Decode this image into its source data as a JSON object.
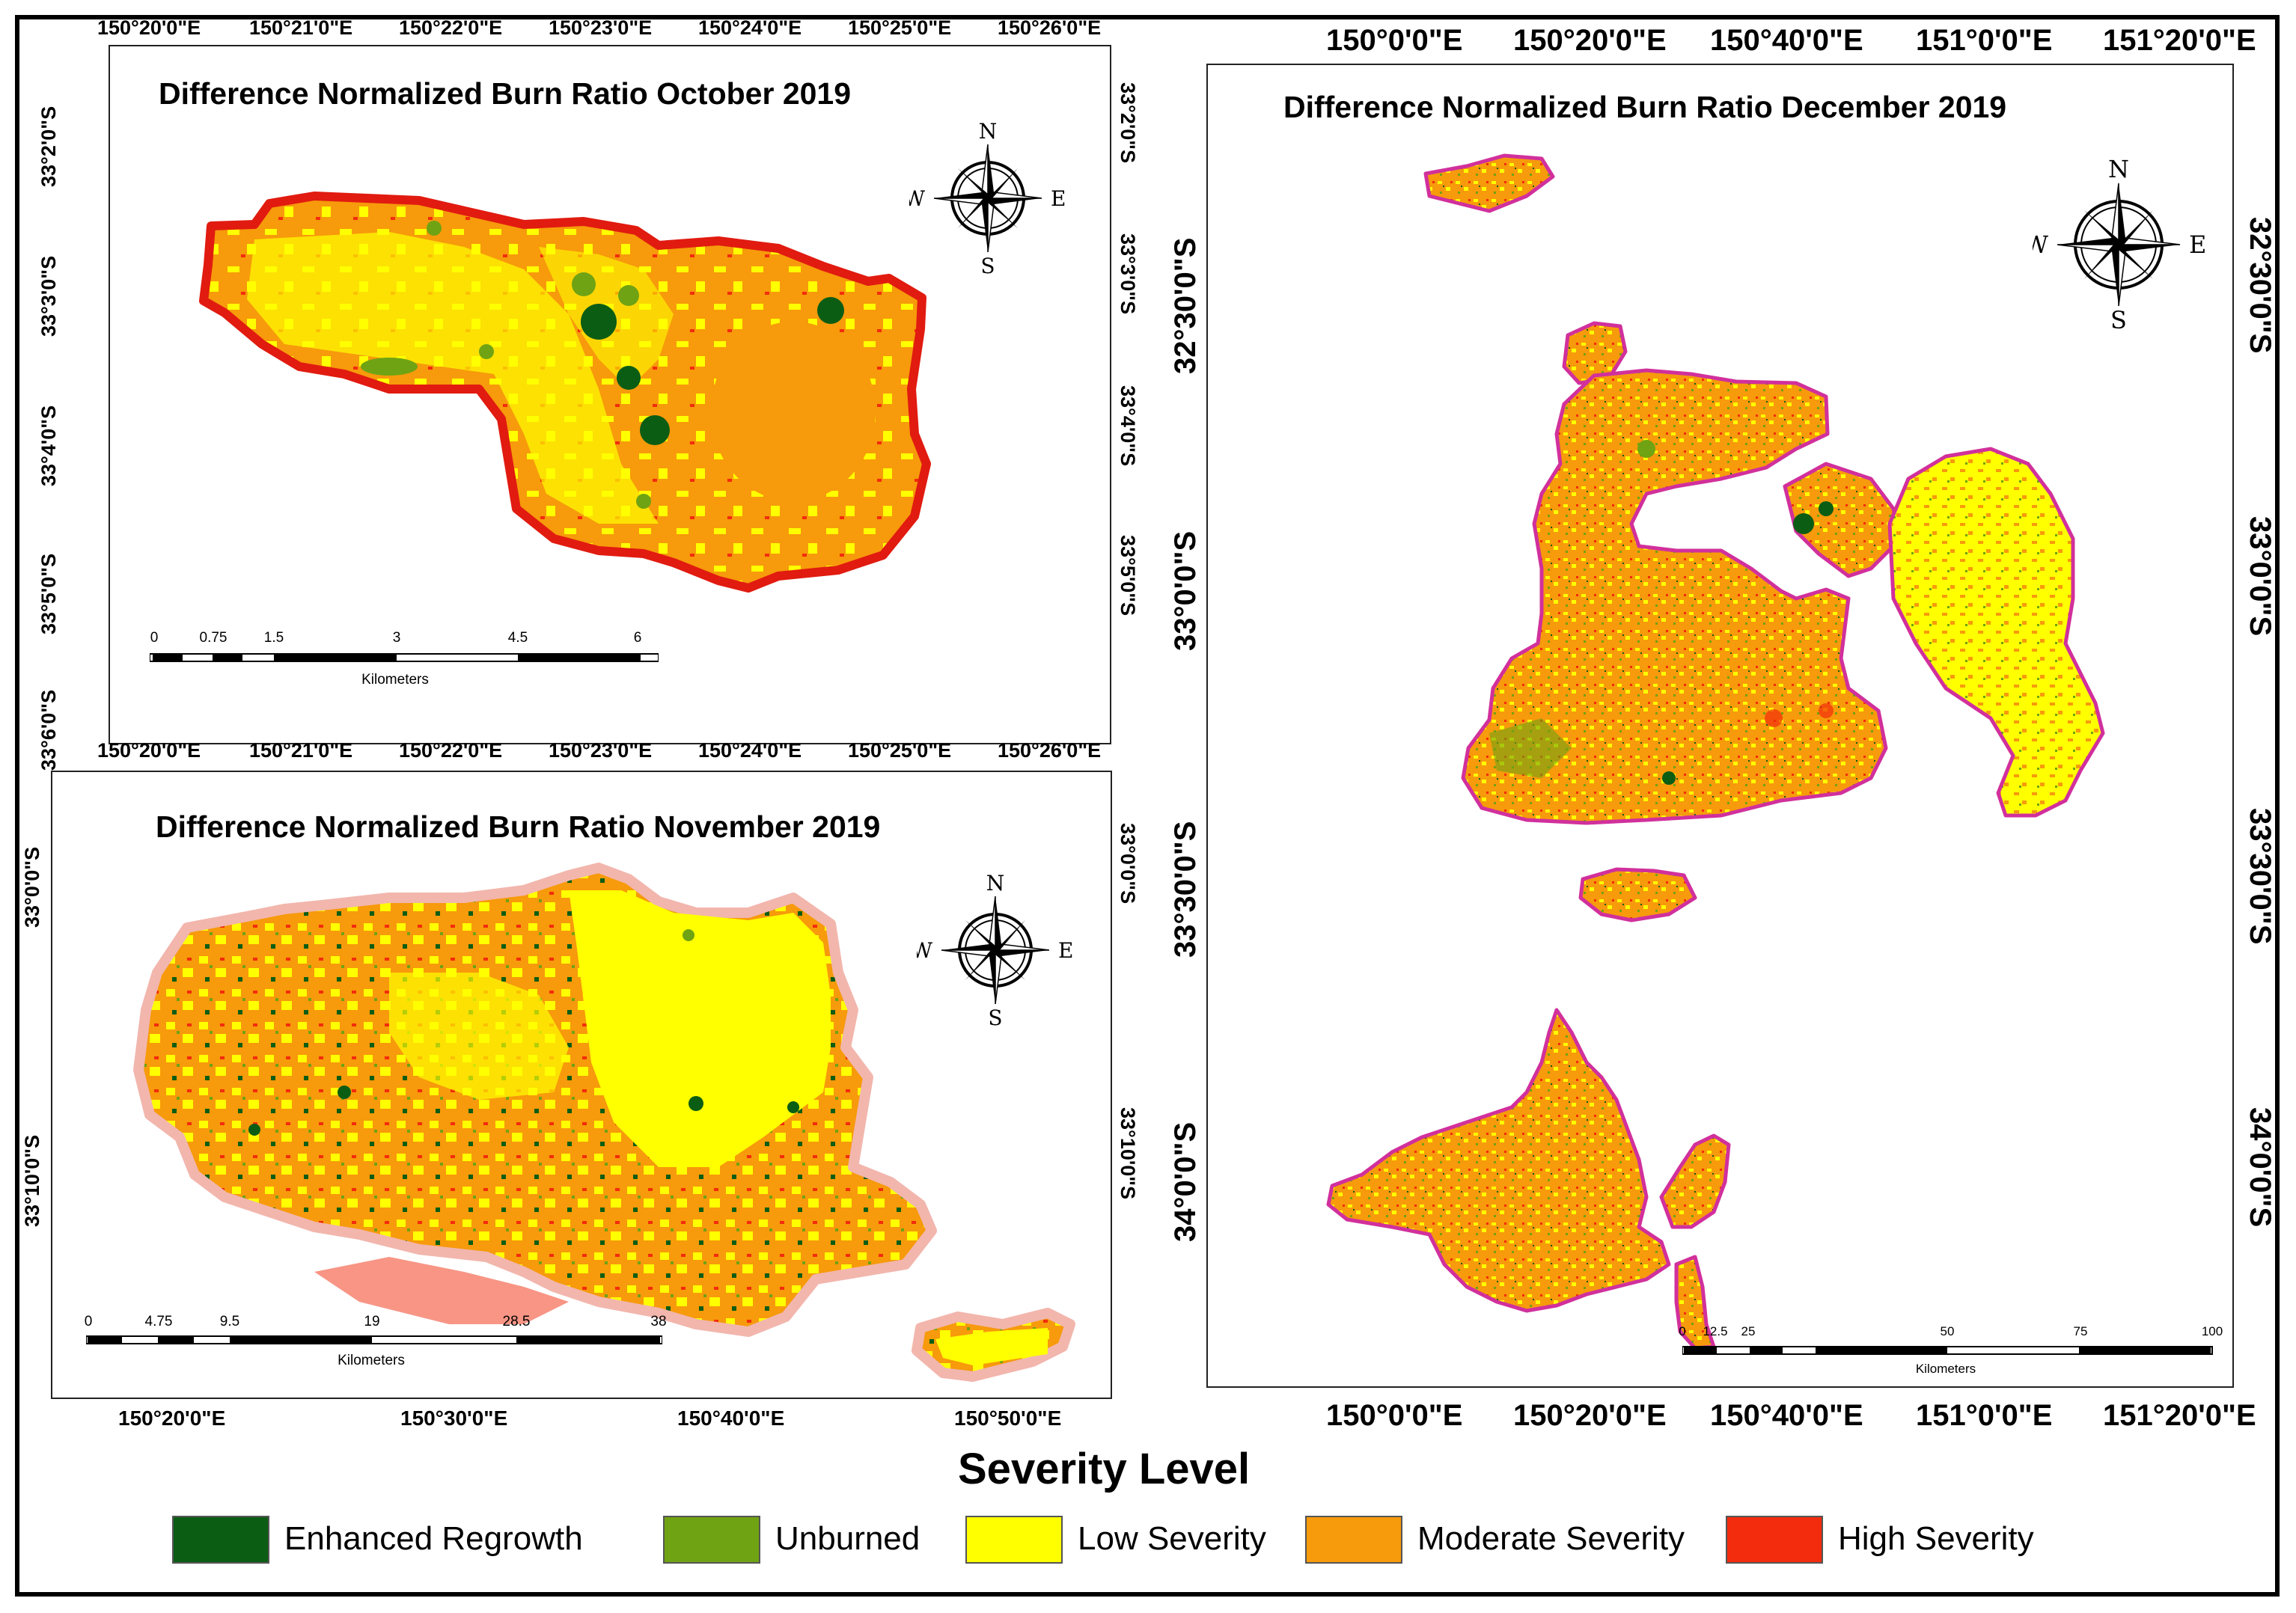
{
  "panels": {
    "october": {
      "title": "Difference Normalized Burn Ratio October 2019",
      "lon_ticks": [
        "150°20'0\"E",
        "150°21'0\"E",
        "150°22'0\"E",
        "150°23'0\"E",
        "150°24'0\"E",
        "150°25'0\"E",
        "150°26'0\"E"
      ],
      "lat_ticks": [
        "33°2'0\"S",
        "33°3'0\"S",
        "33°4'0\"S",
        "33°5'0\"S",
        "33°6'0\"S"
      ],
      "lat_ticks_right": [
        "33°2'0\"S",
        "33°3'0\"S",
        "33°4'0\"S",
        "33°5'0\"S"
      ],
      "scale_labels": [
        "0",
        "0.75",
        "1.5",
        "3",
        "4.5",
        "6"
      ],
      "scale_unit": "Kilometers"
    },
    "november": {
      "title": "Difference Normalized Burn Ratio November 2019",
      "lon_ticks": [
        "150°20'0\"E",
        "150°30'0\"E",
        "150°40'0\"E",
        "150°50'0\"E"
      ],
      "lat_ticks": [
        "33°0'0\"S",
        "33°10'0\"S"
      ],
      "scale_labels": [
        "0",
        "4.75",
        "9.5",
        "19",
        "28.5",
        "38"
      ],
      "scale_unit": "Kilometers"
    },
    "december": {
      "title": "Difference Normalized Burn Ratio December 2019",
      "lon_ticks": [
        "150°0'0\"E",
        "150°20'0\"E",
        "150°40'0\"E",
        "151°0'0\"E",
        "151°20'0\"E"
      ],
      "lat_ticks": [
        "32°30'0\"S",
        "33°0'0\"S",
        "33°30'0\"S",
        "34°0'0\"S"
      ],
      "scale_labels": [
        "0",
        "12.5",
        "25",
        "50",
        "75",
        "100"
      ],
      "scale_unit": "Kilometers"
    }
  },
  "compass": {
    "n": "N",
    "s": "S",
    "e": "E",
    "w": "W"
  },
  "legend": {
    "title": "Severity Level",
    "items": [
      {
        "label": "Enhanced Regrowth",
        "color": "#0b5d14"
      },
      {
        "label": "Unburned",
        "color": "#6fa313"
      },
      {
        "label": "Low Severity",
        "color": "#ffff00"
      },
      {
        "label": "Moderate Severity",
        "color": "#f79a0b"
      },
      {
        "label": "High Severity",
        "color": "#f22c0c"
      }
    ]
  },
  "colors": {
    "october_outline": "#e11b10",
    "november_outline": "#f2b6ad",
    "december_outline": "#d1309c"
  }
}
